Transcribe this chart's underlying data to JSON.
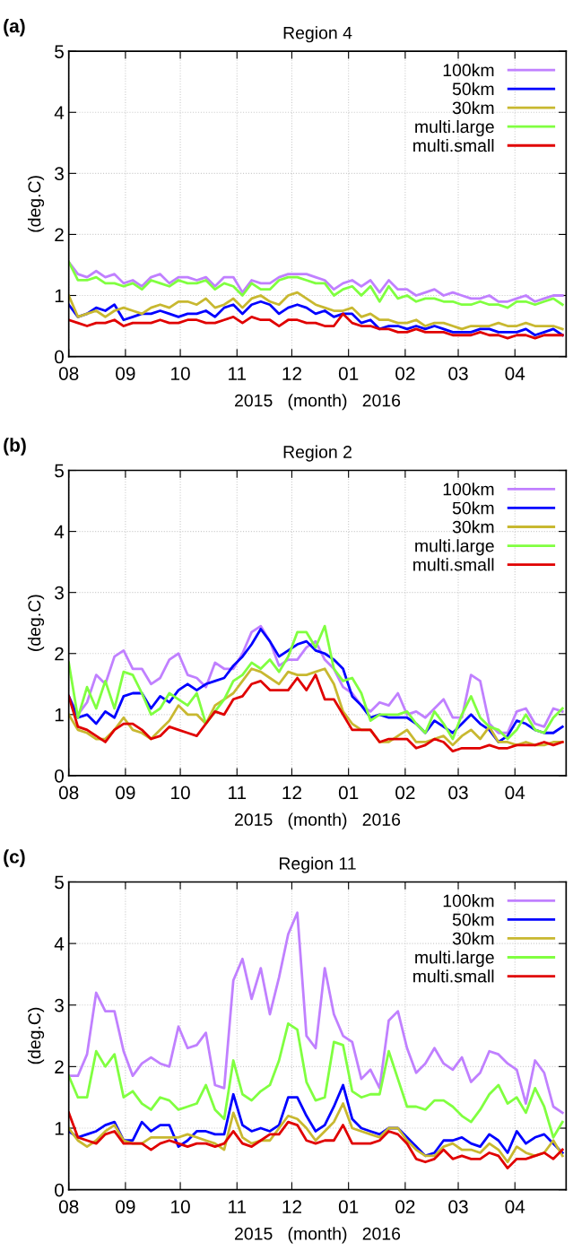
{
  "chart_data": [
    {
      "type": "line",
      "title": "Region 4",
      "xlabel": "2015   (month)   2016",
      "ylabel": "(deg.C)",
      "annotations": [
        "(a)"
      ],
      "x": [
        "2015-08-01",
        "2015-08-06",
        "2015-08-11",
        "2015-08-16",
        "2015-08-21",
        "2015-08-26",
        "2015-08-31",
        "2015-09-05",
        "2015-09-10",
        "2015-09-15",
        "2015-09-20",
        "2015-09-25",
        "2015-09-30",
        "2015-10-05",
        "2015-10-10",
        "2015-10-15",
        "2015-10-20",
        "2015-10-25",
        "2015-10-30",
        "2015-11-04",
        "2015-11-09",
        "2015-11-14",
        "2015-11-19",
        "2015-11-24",
        "2015-11-29",
        "2015-12-04",
        "2015-12-09",
        "2015-12-14",
        "2015-12-19",
        "2015-12-24",
        "2015-12-29",
        "2016-01-03",
        "2016-01-08",
        "2016-01-13",
        "2016-01-18",
        "2016-01-23",
        "2016-01-28",
        "2016-02-02",
        "2016-02-07",
        "2016-02-12",
        "2016-02-17",
        "2016-02-22",
        "2016-02-27",
        "2016-03-03",
        "2016-03-08",
        "2016-03-13",
        "2016-03-18",
        "2016-03-23",
        "2016-03-28",
        "2016-04-02",
        "2016-04-07",
        "2016-04-12",
        "2016-04-17",
        "2016-04-22",
        "2016-04-27"
      ],
      "series": [
        {
          "name": "100km",
          "color": "#c080ff",
          "values": [
            1.55,
            1.35,
            1.3,
            1.4,
            1.3,
            1.35,
            1.2,
            1.25,
            1.15,
            1.3,
            1.35,
            1.2,
            1.3,
            1.3,
            1.25,
            1.3,
            1.15,
            1.3,
            1.3,
            1.05,
            1.25,
            1.2,
            1.2,
            1.3,
            1.35,
            1.35,
            1.35,
            1.3,
            1.25,
            1.1,
            1.2,
            1.25,
            1.15,
            1.25,
            1.05,
            1.25,
            1.1,
            1.1,
            1.0,
            1.05,
            1.1,
            1.0,
            1.05,
            1.0,
            0.95,
            0.95,
            1.0,
            0.9,
            0.9,
            0.95,
            1.0,
            0.9,
            0.95,
            1.0,
            1.0
          ]
        },
        {
          "name": "50km",
          "color": "#0000ff",
          "values": [
            0.85,
            0.65,
            0.7,
            0.8,
            0.75,
            0.85,
            0.6,
            0.65,
            0.7,
            0.7,
            0.75,
            0.7,
            0.65,
            0.7,
            0.7,
            0.75,
            0.65,
            0.8,
            0.85,
            0.7,
            0.85,
            0.9,
            0.85,
            0.7,
            0.8,
            0.85,
            0.8,
            0.7,
            0.75,
            0.65,
            0.7,
            0.7,
            0.55,
            0.6,
            0.45,
            0.5,
            0.5,
            0.45,
            0.5,
            0.45,
            0.5,
            0.45,
            0.4,
            0.4,
            0.4,
            0.45,
            0.45,
            0.4,
            0.4,
            0.4,
            0.45,
            0.35,
            0.4,
            0.45,
            0.35
          ]
        },
        {
          "name": "30km",
          "color": "#c8b830",
          "values": [
            1.0,
            0.65,
            0.7,
            0.75,
            0.65,
            0.75,
            0.8,
            0.75,
            0.7,
            0.8,
            0.85,
            0.8,
            0.9,
            0.9,
            0.85,
            0.95,
            0.8,
            0.85,
            0.95,
            0.8,
            0.95,
            1.0,
            0.9,
            0.85,
            1.0,
            1.05,
            0.95,
            0.85,
            0.8,
            0.75,
            0.75,
            0.8,
            0.65,
            0.7,
            0.6,
            0.6,
            0.55,
            0.55,
            0.6,
            0.5,
            0.55,
            0.55,
            0.5,
            0.45,
            0.5,
            0.5,
            0.5,
            0.55,
            0.5,
            0.5,
            0.55,
            0.5,
            0.5,
            0.5,
            0.45
          ]
        },
        {
          "name": "multi.large",
          "color": "#80ff40",
          "values": [
            1.55,
            1.25,
            1.25,
            1.3,
            1.2,
            1.2,
            1.15,
            1.2,
            1.1,
            1.25,
            1.2,
            1.15,
            1.25,
            1.2,
            1.2,
            1.25,
            1.1,
            1.2,
            1.15,
            1.0,
            1.2,
            1.1,
            1.1,
            1.25,
            1.3,
            1.3,
            1.25,
            1.2,
            1.2,
            1.0,
            1.1,
            1.15,
            1.0,
            1.15,
            0.9,
            1.15,
            0.95,
            1.0,
            0.9,
            0.95,
            0.95,
            0.9,
            0.9,
            0.85,
            0.85,
            0.9,
            0.85,
            0.85,
            0.8,
            0.9,
            0.9,
            0.85,
            0.9,
            0.95,
            0.85
          ]
        },
        {
          "name": "multi.small",
          "color": "#e00000",
          "values": [
            0.6,
            0.55,
            0.5,
            0.55,
            0.55,
            0.6,
            0.5,
            0.55,
            0.55,
            0.55,
            0.6,
            0.55,
            0.55,
            0.6,
            0.6,
            0.55,
            0.55,
            0.6,
            0.65,
            0.55,
            0.65,
            0.6,
            0.6,
            0.5,
            0.6,
            0.6,
            0.55,
            0.55,
            0.5,
            0.5,
            0.7,
            0.55,
            0.5,
            0.5,
            0.45,
            0.45,
            0.4,
            0.4,
            0.45,
            0.4,
            0.4,
            0.4,
            0.35,
            0.35,
            0.35,
            0.4,
            0.35,
            0.35,
            0.3,
            0.35,
            0.35,
            0.3,
            0.35,
            0.35,
            0.35
          ]
        }
      ],
      "xlim": [
        "2015-08-01",
        "2016-04-29"
      ],
      "ylim": [
        0,
        5
      ],
      "yticks": [
        0,
        1,
        2,
        3,
        4,
        5
      ],
      "xticks": [
        {
          "value": "2015-08-01",
          "label": "08"
        },
        {
          "value": "2015-09-01",
          "label": "09"
        },
        {
          "value": "2015-10-01",
          "label": "10"
        },
        {
          "value": "2015-11-01",
          "label": "11"
        },
        {
          "value": "2015-12-01",
          "label": "12"
        },
        {
          "value": "2016-01-01",
          "label": "01"
        },
        {
          "value": "2016-02-01",
          "label": "02"
        },
        {
          "value": "2016-03-01",
          "label": "03"
        },
        {
          "value": "2016-04-01",
          "label": "04"
        }
      ],
      "grid": true,
      "legend": "top right"
    },
    {
      "type": "line",
      "title": "Region 2",
      "xlabel": "2015   (month)   2016",
      "ylabel": "(deg.C)",
      "annotations": [
        "(b)"
      ],
      "x": [
        "2015-08-01",
        "2015-08-06",
        "2015-08-11",
        "2015-08-16",
        "2015-08-21",
        "2015-08-26",
        "2015-08-31",
        "2015-09-05",
        "2015-09-10",
        "2015-09-15",
        "2015-09-20",
        "2015-09-25",
        "2015-09-30",
        "2015-10-05",
        "2015-10-10",
        "2015-10-15",
        "2015-10-20",
        "2015-10-25",
        "2015-10-30",
        "2015-11-04",
        "2015-11-09",
        "2015-11-14",
        "2015-11-19",
        "2015-11-24",
        "2015-11-29",
        "2015-12-04",
        "2015-12-09",
        "2015-12-14",
        "2015-12-19",
        "2015-12-24",
        "2015-12-29",
        "2016-01-03",
        "2016-01-08",
        "2016-01-13",
        "2016-01-18",
        "2016-01-23",
        "2016-01-28",
        "2016-02-02",
        "2016-02-07",
        "2016-02-12",
        "2016-02-17",
        "2016-02-22",
        "2016-02-27",
        "2016-03-03",
        "2016-03-08",
        "2016-03-13",
        "2016-03-18",
        "2016-03-23",
        "2016-03-28",
        "2016-04-02",
        "2016-04-07",
        "2016-04-12",
        "2016-04-17",
        "2016-04-22",
        "2016-04-27"
      ],
      "series": [
        {
          "name": "100km",
          "color": "#c080ff",
          "values": [
            1.3,
            1.0,
            1.2,
            1.65,
            1.5,
            1.95,
            2.05,
            1.75,
            1.75,
            1.5,
            1.6,
            1.9,
            2.0,
            1.65,
            1.6,
            1.45,
            1.85,
            1.75,
            1.75,
            2.0,
            2.35,
            2.45,
            2.2,
            1.8,
            1.9,
            1.9,
            2.1,
            2.2,
            1.9,
            1.75,
            1.45,
            1.35,
            1.15,
            1.05,
            1.2,
            1.15,
            1.35,
            1.0,
            1.05,
            0.95,
            1.1,
            1.25,
            0.95,
            0.95,
            1.65,
            1.55,
            0.85,
            0.7,
            0.7,
            1.05,
            1.1,
            0.85,
            0.8,
            1.1,
            1.05
          ]
        },
        {
          "name": "50km",
          "color": "#0000ff",
          "values": [
            1.3,
            0.95,
            1.0,
            0.85,
            1.05,
            0.95,
            1.3,
            1.35,
            1.35,
            1.1,
            1.3,
            1.2,
            1.4,
            1.5,
            1.4,
            1.5,
            1.55,
            1.6,
            1.8,
            1.95,
            2.15,
            2.4,
            2.2,
            1.95,
            2.05,
            2.15,
            2.2,
            2.05,
            2.0,
            1.9,
            1.75,
            1.3,
            1.15,
            0.95,
            1.0,
            0.95,
            0.95,
            0.95,
            0.85,
            0.7,
            0.9,
            0.8,
            0.7,
            0.85,
            1.0,
            0.85,
            0.75,
            0.55,
            0.65,
            0.9,
            0.85,
            0.75,
            0.7,
            0.7,
            0.8
          ]
        },
        {
          "name": "30km",
          "color": "#c8b830",
          "values": [
            1.0,
            0.75,
            0.7,
            0.6,
            0.6,
            0.75,
            0.95,
            0.75,
            0.7,
            0.6,
            0.75,
            0.9,
            1.15,
            1.0,
            1.0,
            0.85,
            1.15,
            1.25,
            1.35,
            1.55,
            1.75,
            1.7,
            1.6,
            1.5,
            1.7,
            1.65,
            1.65,
            1.7,
            1.75,
            1.5,
            1.05,
            0.85,
            0.75,
            0.75,
            0.55,
            0.55,
            0.65,
            0.75,
            0.55,
            0.55,
            0.6,
            0.65,
            0.5,
            0.65,
            0.75,
            0.6,
            0.8,
            0.55,
            0.55,
            0.5,
            0.55,
            0.5,
            0.5,
            0.55,
            0.55
          ]
        },
        {
          "name": "multi.large",
          "color": "#80ff40",
          "values": [
            1.85,
            0.95,
            1.45,
            1.1,
            1.55,
            1.1,
            1.7,
            1.65,
            1.35,
            1.0,
            1.1,
            1.35,
            1.25,
            1.15,
            1.35,
            0.85,
            1.05,
            1.25,
            1.55,
            1.65,
            1.85,
            1.75,
            1.9,
            1.7,
            1.95,
            2.35,
            2.35,
            2.1,
            2.45,
            1.75,
            1.55,
            1.6,
            1.35,
            0.9,
            1.0,
            1.0,
            1.0,
            1.05,
            0.85,
            0.7,
            1.05,
            0.85,
            0.6,
            1.0,
            1.3,
            0.95,
            0.8,
            0.75,
            0.6,
            0.75,
            1.0,
            0.75,
            0.7,
            0.95,
            1.1
          ]
        },
        {
          "name": "multi.small",
          "color": "#e00000",
          "values": [
            1.3,
            0.8,
            0.75,
            0.65,
            0.55,
            0.75,
            0.85,
            0.85,
            0.75,
            0.6,
            0.65,
            0.8,
            0.75,
            0.7,
            0.65,
            0.85,
            1.05,
            1.0,
            1.25,
            1.3,
            1.5,
            1.55,
            1.4,
            1.4,
            1.4,
            1.6,
            1.4,
            1.65,
            1.25,
            1.25,
            1.0,
            0.75,
            0.75,
            0.75,
            0.55,
            0.6,
            0.6,
            0.6,
            0.45,
            0.5,
            0.6,
            0.55,
            0.4,
            0.45,
            0.45,
            0.45,
            0.5,
            0.45,
            0.45,
            0.5,
            0.5,
            0.5,
            0.55,
            0.5,
            0.55
          ]
        }
      ],
      "xlim": [
        "2015-08-01",
        "2016-04-29"
      ],
      "ylim": [
        0,
        5
      ],
      "yticks": [
        0,
        1,
        2,
        3,
        4,
        5
      ],
      "xticks": [
        {
          "value": "2015-08-01",
          "label": "08"
        },
        {
          "value": "2015-09-01",
          "label": "09"
        },
        {
          "value": "2015-10-01",
          "label": "10"
        },
        {
          "value": "2015-11-01",
          "label": "11"
        },
        {
          "value": "2015-12-01",
          "label": "12"
        },
        {
          "value": "2016-01-01",
          "label": "01"
        },
        {
          "value": "2016-02-01",
          "label": "02"
        },
        {
          "value": "2016-03-01",
          "label": "03"
        },
        {
          "value": "2016-04-01",
          "label": "04"
        }
      ],
      "grid": true,
      "legend": "top right"
    },
    {
      "type": "line",
      "title": "Region 11",
      "xlabel": "2015   (month)   2016",
      "ylabel": "(deg.C)",
      "annotations": [
        "(c)"
      ],
      "x": [
        "2015-08-01",
        "2015-08-06",
        "2015-08-11",
        "2015-08-16",
        "2015-08-21",
        "2015-08-26",
        "2015-08-31",
        "2015-09-05",
        "2015-09-10",
        "2015-09-15",
        "2015-09-20",
        "2015-09-25",
        "2015-09-30",
        "2015-10-05",
        "2015-10-10",
        "2015-10-15",
        "2015-10-20",
        "2015-10-25",
        "2015-10-30",
        "2015-11-04",
        "2015-11-09",
        "2015-11-14",
        "2015-11-19",
        "2015-11-24",
        "2015-11-29",
        "2015-12-04",
        "2015-12-09",
        "2015-12-14",
        "2015-12-19",
        "2015-12-24",
        "2015-12-29",
        "2016-01-03",
        "2016-01-08",
        "2016-01-13",
        "2016-01-18",
        "2016-01-23",
        "2016-01-28",
        "2016-02-02",
        "2016-02-07",
        "2016-02-12",
        "2016-02-17",
        "2016-02-22",
        "2016-02-27",
        "2016-03-03",
        "2016-03-08",
        "2016-03-13",
        "2016-03-18",
        "2016-03-23",
        "2016-03-28",
        "2016-04-02",
        "2016-04-07",
        "2016-04-12",
        "2016-04-17",
        "2016-04-22",
        "2016-04-27"
      ],
      "series": [
        {
          "name": "100km",
          "color": "#c080ff",
          "values": [
            1.85,
            1.85,
            2.2,
            3.2,
            2.9,
            2.9,
            2.25,
            1.85,
            2.05,
            2.15,
            2.05,
            2.0,
            2.65,
            2.3,
            2.35,
            2.55,
            1.7,
            1.65,
            3.4,
            3.75,
            3.1,
            3.6,
            2.85,
            3.45,
            4.15,
            4.5,
            2.5,
            2.3,
            3.6,
            2.85,
            2.5,
            2.4,
            1.8,
            1.95,
            1.65,
            2.75,
            2.9,
            2.3,
            1.9,
            2.05,
            2.3,
            2.05,
            1.95,
            2.15,
            1.75,
            1.9,
            2.25,
            2.2,
            2.05,
            1.95,
            1.4,
            2.1,
            1.9,
            1.35,
            1.25
          ]
        },
        {
          "name": "50km",
          "color": "#0000ff",
          "values": [
            0.95,
            0.85,
            0.9,
            0.95,
            1.05,
            1.1,
            0.8,
            0.8,
            1.1,
            0.95,
            1.05,
            1.05,
            0.7,
            0.8,
            0.95,
            0.95,
            0.9,
            0.9,
            1.55,
            1.05,
            0.95,
            1.0,
            0.95,
            1.05,
            1.5,
            1.5,
            1.2,
            0.95,
            1.05,
            1.35,
            1.7,
            1.15,
            1.0,
            0.95,
            0.9,
            1.0,
            1.0,
            0.85,
            0.7,
            0.55,
            0.6,
            0.8,
            0.8,
            0.85,
            0.75,
            0.7,
            0.9,
            0.8,
            0.6,
            0.95,
            0.75,
            0.85,
            0.9,
            0.75,
            0.6
          ]
        },
        {
          "name": "30km",
          "color": "#c8b830",
          "values": [
            1.0,
            0.8,
            0.7,
            0.8,
            0.95,
            1.05,
            0.8,
            0.75,
            0.75,
            0.85,
            0.85,
            0.85,
            0.85,
            0.9,
            0.85,
            0.8,
            0.75,
            0.65,
            1.25,
            0.85,
            0.75,
            0.8,
            0.8,
            1.0,
            1.2,
            1.15,
            1.0,
            0.8,
            0.95,
            1.1,
            1.4,
            1.0,
            0.95,
            0.9,
            0.85,
            1.0,
            1.0,
            0.8,
            0.65,
            0.55,
            0.55,
            0.7,
            0.75,
            0.65,
            0.65,
            0.6,
            0.75,
            0.65,
            0.45,
            0.7,
            0.6,
            0.55,
            0.6,
            0.8,
            0.55
          ]
        },
        {
          "name": "multi.large",
          "color": "#80ff40",
          "values": [
            1.85,
            1.5,
            1.5,
            2.25,
            2.0,
            2.2,
            1.5,
            1.6,
            1.4,
            1.3,
            1.5,
            1.45,
            1.3,
            1.35,
            1.4,
            1.7,
            1.3,
            1.15,
            2.1,
            1.55,
            1.45,
            1.6,
            1.7,
            2.1,
            2.7,
            2.6,
            1.75,
            1.45,
            1.5,
            2.4,
            2.35,
            1.6,
            1.5,
            1.55,
            1.55,
            2.25,
            1.8,
            1.35,
            1.35,
            1.3,
            1.45,
            1.45,
            1.35,
            1.2,
            1.1,
            1.3,
            1.55,
            1.7,
            1.4,
            1.5,
            1.25,
            1.65,
            1.35,
            0.85,
            1.1
          ]
        },
        {
          "name": "multi.small",
          "color": "#e00000",
          "values": [
            1.25,
            0.85,
            0.8,
            0.75,
            0.9,
            0.95,
            0.75,
            0.75,
            0.75,
            0.65,
            0.75,
            0.8,
            0.75,
            0.7,
            0.75,
            0.75,
            0.7,
            0.75,
            0.95,
            0.75,
            0.7,
            0.8,
            0.9,
            0.9,
            1.1,
            1.05,
            0.8,
            0.75,
            0.8,
            0.8,
            1.05,
            0.75,
            0.75,
            0.75,
            0.8,
            0.95,
            0.9,
            0.75,
            0.5,
            0.45,
            0.5,
            0.65,
            0.5,
            0.55,
            0.5,
            0.5,
            0.6,
            0.55,
            0.35,
            0.5,
            0.5,
            0.55,
            0.6,
            0.5,
            0.65
          ]
        }
      ],
      "xlim": [
        "2015-08-01",
        "2016-04-29"
      ],
      "ylim": [
        0,
        5
      ],
      "yticks": [
        0,
        1,
        2,
        3,
        4,
        5
      ],
      "xticks": [
        {
          "value": "2015-08-01",
          "label": "08"
        },
        {
          "value": "2015-09-01",
          "label": "09"
        },
        {
          "value": "2015-10-01",
          "label": "10"
        },
        {
          "value": "2015-11-01",
          "label": "11"
        },
        {
          "value": "2015-12-01",
          "label": "12"
        },
        {
          "value": "2016-01-01",
          "label": "01"
        },
        {
          "value": "2016-02-01",
          "label": "02"
        },
        {
          "value": "2016-03-01",
          "label": "03"
        },
        {
          "value": "2016-04-01",
          "label": "04"
        }
      ],
      "grid": true,
      "legend": "top right"
    }
  ]
}
